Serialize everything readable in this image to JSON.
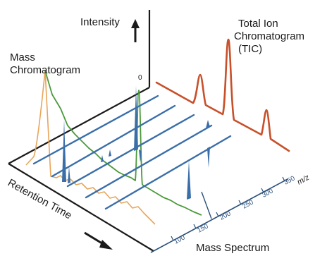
{
  "labels": {
    "intensity": "Intensity",
    "tic_line1": "Total Ion",
    "tic_line2": "Chromatogram",
    "tic_line3": "(TIC)",
    "mass_chrom_line1": "Mass",
    "mass_chrom_line2": "Chromatogram",
    "retention_time": "Retention Time",
    "mass_spectrum": "Mass Spectrum",
    "mz": "m/z",
    "origin_zero": "0"
  },
  "mz_ticks": [
    "100",
    "150",
    "200",
    "250",
    "300",
    "350"
  ],
  "colors": {
    "axis": "#1a1a1a",
    "tic": "#c8502a",
    "spectra": "#3a6ea8",
    "mass_chrom_green": "#4a9a3a",
    "mass_chrom_orange": "#e8a55a",
    "mz_axis": "#2a4f7a"
  }
}
